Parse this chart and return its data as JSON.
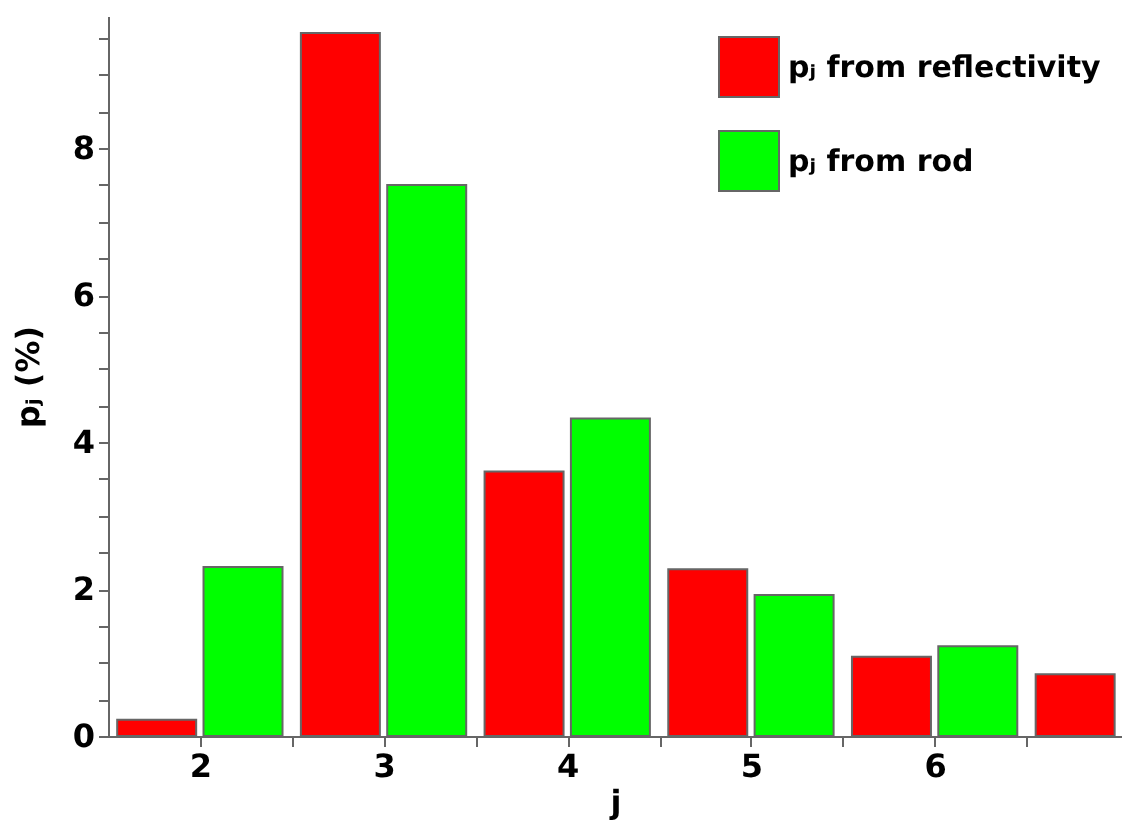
{
  "chart_data": {
    "type": "bar",
    "xlabel": "j",
    "ylabel": "pⱼ (%)",
    "x": [
      2,
      3,
      4,
      5,
      6,
      7
    ],
    "series": [
      {
        "name": "pⱼ from reflectivity",
        "color": "#ff0000",
        "values": [
          0.22,
          9.57,
          3.6,
          2.27,
          1.08,
          0.84
        ]
      },
      {
        "name": "pⱼ from rod",
        "color": "#00ff00",
        "values": [
          2.3,
          7.5,
          4.32,
          1.92,
          1.22,
          null
        ]
      }
    ],
    "xlim": [
      1.5,
      7.02
    ],
    "xticks": [
      2,
      3,
      4,
      5,
      6,
      {
        "value": 2.5,
        "label": null
      },
      {
        "value": 3.5,
        "label": null
      },
      {
        "value": 4.5,
        "label": null
      },
      {
        "value": 5.5,
        "label": null
      },
      {
        "value": 6.5,
        "label": null
      }
    ],
    "ylim": [
      0,
      9.8
    ],
    "yticks": [
      0,
      2,
      4,
      6,
      8,
      {
        "value": 0.5,
        "label": null
      },
      {
        "value": 1,
        "label": null
      },
      {
        "value": 1.5,
        "label": null
      },
      {
        "value": 2.5,
        "label": null
      },
      {
        "value": 3,
        "label": null
      },
      {
        "value": 3.5,
        "label": null
      },
      {
        "value": 4.5,
        "label": null
      },
      {
        "value": 5,
        "label": null
      },
      {
        "value": 5.5,
        "label": null
      },
      {
        "value": 6.5,
        "label": null
      },
      {
        "value": 7,
        "label": null
      },
      {
        "value": 7.5,
        "label": null
      },
      {
        "value": 8.5,
        "label": null
      },
      {
        "value": 9,
        "label": null
      },
      {
        "value": 9.5,
        "label": null
      }
    ],
    "grid": false,
    "legend": "top right"
  }
}
